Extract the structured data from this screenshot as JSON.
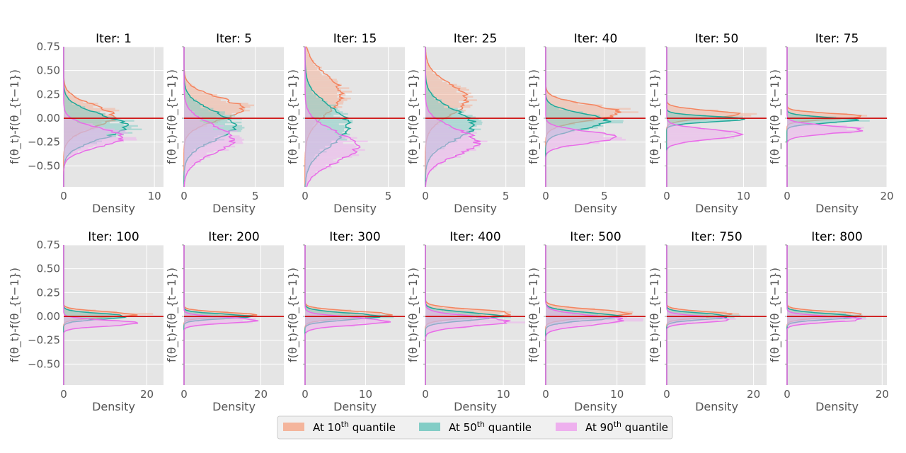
{
  "chart_data": {
    "type": "histogram-grid",
    "panel_title_prefix": "Iter: ",
    "xlabel": "Density",
    "ylabel": "f(θ_t)-f(θ_{t−1})",
    "ylim": [
      -0.72,
      0.75
    ],
    "yticks": [
      0.75,
      0.5,
      0.25,
      0.0,
      -0.25,
      -0.5
    ],
    "ytick_labels": [
      "0.75",
      "0.50",
      "0.25",
      "0.00",
      "−0.25",
      "−0.50"
    ],
    "zero_line_color": "#cc0000",
    "series": [
      {
        "name": "10th",
        "color": "#f4845f",
        "fill": "#f4b59c"
      },
      {
        "name": "50th",
        "color": "#1fa99a",
        "fill": "#83cdc6"
      },
      {
        "name": "90th",
        "color": "#e86be8",
        "fill": "#eeb0ee"
      }
    ],
    "legend": {
      "placement": "bottom-center",
      "prefix": "At 10",
      "items": [
        {
          "pre": "At 10",
          "sup": "th",
          "post": " quantile"
        },
        {
          "pre": "At 50",
          "sup": "th",
          "post": " quantile"
        },
        {
          "pre": "At 90",
          "sup": "th",
          "post": " quantile"
        }
      ]
    },
    "panels": [
      {
        "iter": "1",
        "xmax": 11,
        "xticks": [
          0,
          10
        ],
        "dists": [
          [
            0.02,
            0.12,
            5.5
          ],
          [
            -0.09,
            0.13,
            6.8
          ],
          [
            -0.2,
            0.1,
            6.5
          ]
        ]
      },
      {
        "iter": "5",
        "xmax": 7,
        "xticks": [
          0,
          5
        ],
        "dists": [
          [
            0.1,
            0.12,
            4.0
          ],
          [
            -0.08,
            0.15,
            3.6
          ],
          [
            -0.22,
            0.15,
            3.4
          ]
        ]
      },
      {
        "iter": "15",
        "xmax": 6,
        "xticks": [
          0,
          5
        ],
        "dists": [
          [
            0.25,
            0.2,
            2.2
          ],
          [
            -0.08,
            0.2,
            2.6
          ],
          [
            -0.3,
            0.16,
            3.1
          ]
        ]
      },
      {
        "iter": "25",
        "xmax": 6.2,
        "xticks": [
          0,
          5
        ],
        "dists": [
          [
            0.2,
            0.16,
            2.6
          ],
          [
            -0.07,
            0.16,
            3.0
          ],
          [
            -0.25,
            0.14,
            3.2
          ]
        ]
      },
      {
        "iter": "40",
        "xmax": 8.5,
        "xticks": [
          0,
          5
        ],
        "dists": [
          [
            0.06,
            0.08,
            6.3
          ],
          [
            -0.03,
            0.08,
            5.2
          ],
          [
            -0.2,
            0.06,
            6.2
          ]
        ]
      },
      {
        "iter": "50",
        "xmax": 13,
        "xticks": [
          0,
          10
        ],
        "dists": [
          [
            0.04,
            0.04,
            9.5
          ],
          [
            -0.01,
            0.03,
            9.5
          ],
          [
            -0.17,
            0.05,
            9.8
          ]
        ]
      },
      {
        "iter": "75",
        "xmax": 20,
        "xticks": [
          0,
          20
        ],
        "dists": [
          [
            0.02,
            0.03,
            15.5
          ],
          [
            -0.02,
            0.03,
            13.5
          ],
          [
            -0.12,
            0.04,
            15.0
          ]
        ]
      },
      {
        "iter": "100",
        "xmax": 24,
        "xticks": [
          0,
          20
        ],
        "dists": [
          [
            0.02,
            0.03,
            17.0
          ],
          [
            0.0,
            0.03,
            15.0
          ],
          [
            -0.07,
            0.03,
            18.0
          ]
        ]
      },
      {
        "iter": "200",
        "xmax": 26,
        "xticks": [
          0,
          20
        ],
        "dists": [
          [
            0.02,
            0.025,
            18.0
          ],
          [
            0.0,
            0.025,
            17.0
          ],
          [
            -0.04,
            0.03,
            19.0
          ]
        ]
      },
      {
        "iter": "300",
        "xmax": 16.5,
        "xticks": [
          0,
          10
        ],
        "dists": [
          [
            0.02,
            0.035,
            14.0
          ],
          [
            0.0,
            0.035,
            12.5
          ],
          [
            -0.05,
            0.04,
            13.5
          ]
        ]
      },
      {
        "iter": "400",
        "xmax": 12.8,
        "xticks": [
          0,
          10
        ],
        "dists": [
          [
            0.03,
            0.04,
            11.0
          ],
          [
            0.0,
            0.04,
            9.5
          ],
          [
            -0.05,
            0.05,
            10.5
          ]
        ]
      },
      {
        "iter": "500",
        "xmax": 14,
        "xticks": [
          0,
          10
        ],
        "dists": [
          [
            0.03,
            0.04,
            12.0
          ],
          [
            0.0,
            0.04,
            10.5
          ],
          [
            -0.04,
            0.05,
            11.0
          ]
        ]
      },
      {
        "iter": "750",
        "xmax": 23,
        "xticks": [
          0,
          20
        ],
        "dists": [
          [
            0.02,
            0.03,
            15.5
          ],
          [
            0.0,
            0.03,
            15.0
          ],
          [
            -0.03,
            0.03,
            15.0
          ]
        ]
      },
      {
        "iter": "800",
        "xmax": 21,
        "xticks": [
          0,
          20
        ],
        "dists": [
          [
            0.02,
            0.03,
            16.0
          ],
          [
            0.0,
            0.03,
            15.0
          ],
          [
            -0.03,
            0.03,
            15.5
          ]
        ]
      }
    ]
  }
}
